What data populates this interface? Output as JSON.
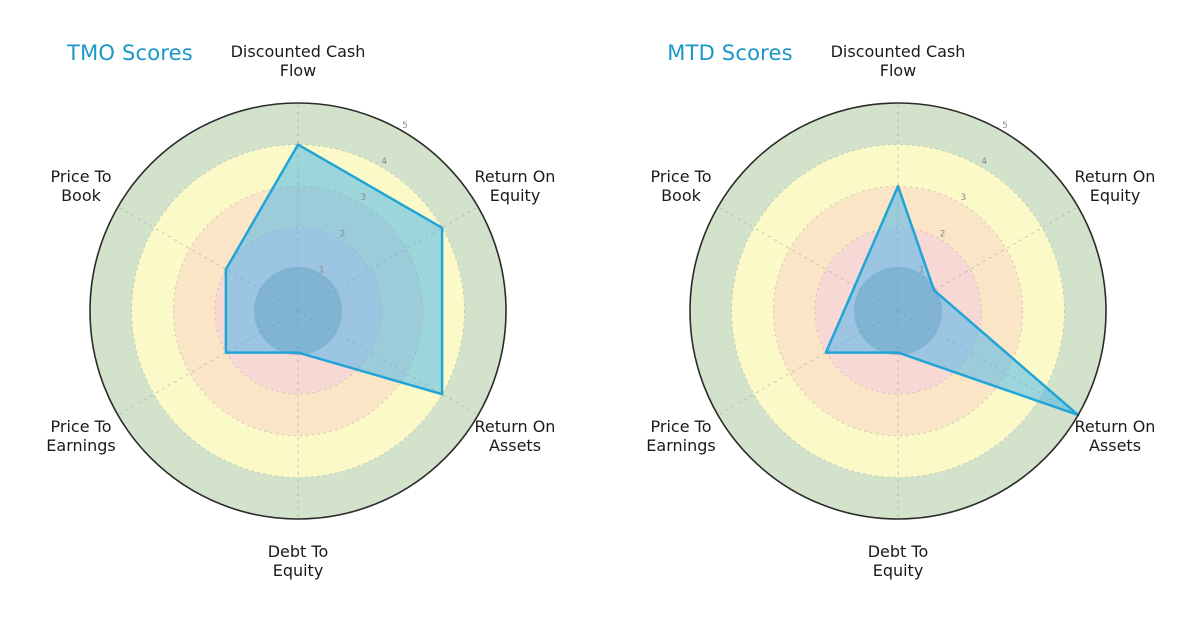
{
  "figure": {
    "background": "#ffffff"
  },
  "chart_data": [
    {
      "type": "radar",
      "title": "TMO Scores",
      "title_color": "#1a96c8",
      "categories": [
        "Discounted Cash\nFlow",
        "Return On\nEquity",
        "Return On\nAssets",
        "Debt To\nEquity",
        "Price To\nEarnings",
        "Price To\nBook"
      ],
      "values": [
        4,
        4,
        4,
        1,
        2,
        2
      ],
      "r_ticks": [
        1,
        2,
        3,
        4,
        5
      ],
      "r_max": 5,
      "r_tick_color": "#8c8c8c",
      "axis_label_color": "#1a1a1a",
      "line_color": "#21a5d8",
      "fill_color": "rgba(62,178,235,0.5)",
      "center_circle": {
        "radius": 1.06,
        "color": "rgba(70,95,125,0.28)"
      },
      "bands": [
        {
          "from": 0,
          "to": 2,
          "color": "#f8d8d4"
        },
        {
          "from": 2,
          "to": 3,
          "color": "#fae5c6"
        },
        {
          "from": 3,
          "to": 4,
          "color": "#fbf9c8"
        },
        {
          "from": 4,
          "to": 5,
          "color": "#d3e3cb"
        }
      ],
      "outline_color": "#2b2b2b",
      "grid_color": "#999999",
      "legend": "none",
      "grid": "on"
    },
    {
      "type": "radar",
      "title": "MTD Scores",
      "title_color": "#1a96c8",
      "categories": [
        "Discounted Cash\nFlow",
        "Return On\nEquity",
        "Return On\nAssets",
        "Debt To\nEquity",
        "Price To\nEarnings",
        "Price To\nBook"
      ],
      "values": [
        3,
        1,
        5,
        1,
        2,
        1.2
      ],
      "r_ticks": [
        1,
        2,
        3,
        4,
        5
      ],
      "r_max": 5,
      "r_tick_color": "#8c8c8c",
      "axis_label_color": "#1a1a1a",
      "line_color": "#21a5d8",
      "fill_color": "rgba(62,178,235,0.5)",
      "center_circle": {
        "radius": 1.06,
        "color": "rgba(70,95,125,0.28)"
      },
      "bands": [
        {
          "from": 0,
          "to": 2,
          "color": "#f8d8d4"
        },
        {
          "from": 2,
          "to": 3,
          "color": "#fae5c6"
        },
        {
          "from": 3,
          "to": 4,
          "color": "#fbf9c8"
        },
        {
          "from": 4,
          "to": 5,
          "color": "#d3e3cb"
        }
      ],
      "outline_color": "#2b2b2b",
      "grid_color": "#999999",
      "legend": "none",
      "grid": "on"
    }
  ]
}
